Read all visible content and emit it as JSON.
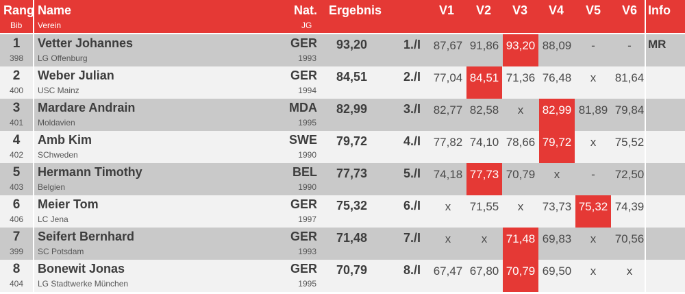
{
  "header": {
    "rang": "Rang",
    "bib": "Bib",
    "name": "Name",
    "verein": "Verein",
    "nat": "Nat.",
    "jg": "JG",
    "ergebnis": "Ergebnis",
    "attempts": [
      "V1",
      "V2",
      "V3",
      "V4",
      "V5",
      "V6"
    ],
    "info": "Info"
  },
  "colors": {
    "accent": "#e53935",
    "row_dark": "#c9c9c9",
    "row_light": "#f2f2f2"
  },
  "rows": [
    {
      "rank": "1",
      "bib": "398",
      "name": "Vetter Johannes",
      "club": "LG Offenburg",
      "nat": "GER",
      "year": "1993",
      "result": "93,20",
      "place": "1./I",
      "attempts": [
        "87,67",
        "91,86",
        "93,20",
        "88,09",
        "-",
        "-"
      ],
      "best": 2,
      "info": "MR"
    },
    {
      "rank": "2",
      "bib": "400",
      "name": "Weber Julian",
      "club": "USC Mainz",
      "nat": "GER",
      "year": "1994",
      "result": "84,51",
      "place": "2./I",
      "attempts": [
        "77,04",
        "84,51",
        "71,36",
        "76,48",
        "x",
        "81,64"
      ],
      "best": 1,
      "info": ""
    },
    {
      "rank": "3",
      "bib": "401",
      "name": "Mardare Andrain",
      "club": "Moldavien",
      "nat": "MDA",
      "year": "1995",
      "result": "82,99",
      "place": "3./I",
      "attempts": [
        "82,77",
        "82,58",
        "x",
        "82,99",
        "81,89",
        "79,84"
      ],
      "best": 3,
      "info": ""
    },
    {
      "rank": "4",
      "bib": "402",
      "name": "Amb Kim",
      "club": "SChweden",
      "nat": "SWE",
      "year": "1990",
      "result": "79,72",
      "place": "4./I",
      "attempts": [
        "77,82",
        "74,10",
        "78,66",
        "79,72",
        "x",
        "75,52"
      ],
      "best": 3,
      "info": ""
    },
    {
      "rank": "5",
      "bib": "403",
      "name": "Hermann Timothy",
      "club": "Belgien",
      "nat": "BEL",
      "year": "1990",
      "result": "77,73",
      "place": "5./I",
      "attempts": [
        "74,18",
        "77,73",
        "70,79",
        "x",
        "-",
        "72,50"
      ],
      "best": 1,
      "info": ""
    },
    {
      "rank": "6",
      "bib": "406",
      "name": "Meier Tom",
      "club": "LC Jena",
      "nat": "GER",
      "year": "1997",
      "result": "75,32",
      "place": "6./I",
      "attempts": [
        "x",
        "71,55",
        "x",
        "73,73",
        "75,32",
        "74,39"
      ],
      "best": 4,
      "info": ""
    },
    {
      "rank": "7",
      "bib": "399",
      "name": "Seifert Bernhard",
      "club": "SC Potsdam",
      "nat": "GER",
      "year": "1993",
      "result": "71,48",
      "place": "7./I",
      "attempts": [
        "x",
        "x",
        "71,48",
        "69,83",
        "x",
        "70,56"
      ],
      "best": 2,
      "info": ""
    },
    {
      "rank": "8",
      "bib": "404",
      "name": "Bonewit Jonas",
      "club": "LG Stadtwerke München",
      "nat": "GER",
      "year": "1995",
      "result": "70,79",
      "place": "8./I",
      "attempts": [
        "67,47",
        "67,80",
        "70,79",
        "69,50",
        "x",
        "x"
      ],
      "best": 2,
      "info": ""
    }
  ]
}
